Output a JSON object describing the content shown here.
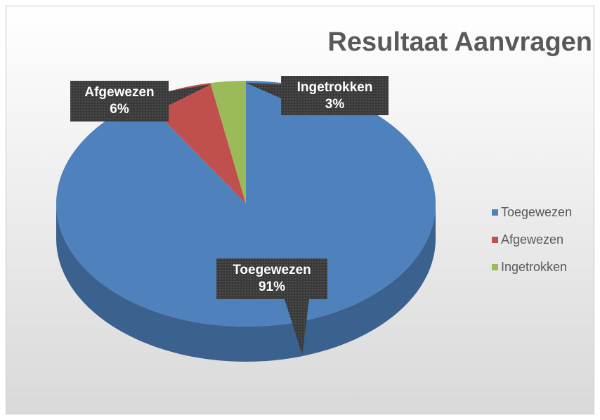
{
  "chart_data": {
    "type": "pie",
    "title": "Resultaat Aanvragen",
    "categories": [
      "Toegewezen",
      "Afgewezen",
      "Ingetrokken"
    ],
    "values": [
      91,
      6,
      3
    ],
    "value_labels": [
      "91%",
      "6%",
      "3%"
    ],
    "colors": [
      "#4f81bd",
      "#c0504d",
      "#9bbb59"
    ],
    "legend": "right"
  }
}
